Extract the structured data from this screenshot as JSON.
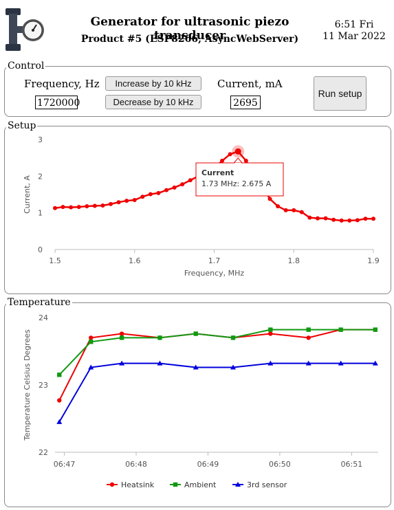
{
  "header": {
    "title": "Generator for ultrasonic piezo transducer",
    "subtitle": "Product #5 (ESP8266, AsyncWebServer)",
    "time": "6:51 Fri",
    "date": "11 Mar 2022",
    "logo_icon": "pipe-gauge-icon"
  },
  "control": {
    "legend": "Control",
    "frequency_label": "Frequency, Hz",
    "frequency_value": "1720000",
    "increase_label": "Increase by 10 kHz",
    "decrease_label": "Decrease by 10 kHz",
    "current_label": "Current, mA",
    "current_value": "2695",
    "run_label": "Run setup"
  },
  "setup": {
    "legend": "Setup"
  },
  "temperature": {
    "legend": "Temperature"
  },
  "chart_data": [
    {
      "type": "line",
      "xlabel": "Frequency, MHz",
      "ylabel": "Current, A",
      "xlim": [
        1.5,
        1.9
      ],
      "ylim": [
        0,
        3
      ],
      "xticks": [
        "1.5",
        "1.6",
        "1.7",
        "1.8",
        "1.9"
      ],
      "yticks": [
        "0",
        "1",
        "2",
        "3"
      ],
      "color": "#ee0000",
      "x": [
        1.5,
        1.51,
        1.52,
        1.53,
        1.54,
        1.55,
        1.56,
        1.57,
        1.58,
        1.59,
        1.6,
        1.61,
        1.62,
        1.63,
        1.64,
        1.65,
        1.66,
        1.67,
        1.68,
        1.69,
        1.7,
        1.71,
        1.72,
        1.73,
        1.74,
        1.75,
        1.76,
        1.77,
        1.78,
        1.79,
        1.8,
        1.81,
        1.82,
        1.83,
        1.84,
        1.85,
        1.86,
        1.87,
        1.88,
        1.89,
        1.9
      ],
      "y": [
        1.13,
        1.16,
        1.15,
        1.16,
        1.18,
        1.19,
        1.2,
        1.24,
        1.29,
        1.33,
        1.35,
        1.44,
        1.51,
        1.54,
        1.62,
        1.69,
        1.78,
        1.89,
        2.0,
        2.09,
        2.22,
        2.42,
        2.6,
        2.675,
        2.42,
        2.05,
        1.75,
        1.38,
        1.18,
        1.07,
        1.07,
        1.02,
        0.87,
        0.85,
        0.85,
        0.81,
        0.79,
        0.79,
        0.8,
        0.84,
        0.84
      ],
      "tooltip": {
        "title": "Current",
        "text": "1.73 MHz: 2.675 A",
        "x": 1.73,
        "y": 2.675
      }
    },
    {
      "type": "line",
      "ylabel": "Temperature Celsius Degrees",
      "ylim": [
        22,
        24
      ],
      "yticks": [
        "22",
        "23",
        "24"
      ],
      "xticks": [
        "06:47",
        "06:48",
        "06:49",
        "06:50",
        "06:51"
      ],
      "xtick_values": [
        47,
        48,
        49,
        50,
        51
      ],
      "xlim": [
        46.87,
        51.37
      ],
      "x": [
        46.93,
        47.37,
        47.8,
        48.33,
        48.83,
        49.35,
        49.87,
        50.4,
        50.85,
        51.33
      ],
      "legend_position": "bottom",
      "series": [
        {
          "name": "Heatsink",
          "color": "#ee0000",
          "marker": "circle",
          "values": [
            22.77,
            23.7,
            23.76,
            23.7,
            23.76,
            23.7,
            23.76,
            23.7,
            23.82,
            23.82
          ]
        },
        {
          "name": "Ambient",
          "color": "#119911",
          "marker": "square",
          "values": [
            23.15,
            23.64,
            23.7,
            23.7,
            23.76,
            23.7,
            23.82,
            23.82,
            23.82,
            23.82
          ]
        },
        {
          "name": "3rd sensor",
          "color": "#0000dd",
          "marker": "triangle",
          "values": [
            22.45,
            23.26,
            23.32,
            23.32,
            23.26,
            23.26,
            23.32,
            23.32,
            23.32,
            23.32
          ]
        }
      ]
    }
  ]
}
